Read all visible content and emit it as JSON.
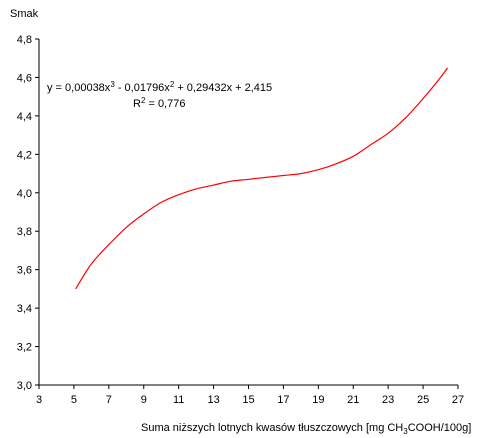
{
  "chart_data": {
    "type": "line",
    "title": "",
    "ylabel": "Smak",
    "xlabel_parts": {
      "before": "Suma niższych lotnych  kwasów tłuszczowych [mg CH",
      "subscript": "3",
      "after": "COOH/100g]"
    },
    "xlim": [
      3,
      27
    ],
    "ylim": [
      3.0,
      4.8
    ],
    "x_ticks": [
      3,
      5,
      7,
      9,
      11,
      13,
      15,
      17,
      19,
      21,
      23,
      25,
      27
    ],
    "y_ticks": [
      "3,0",
      "3,2",
      "3,4",
      "3,6",
      "3,8",
      "4,0",
      "4,2",
      "4,4",
      "4,6",
      "4,8"
    ],
    "y_tick_values": [
      3.0,
      3.2,
      3.4,
      3.6,
      3.8,
      4.0,
      4.2,
      4.4,
      4.6,
      4.8
    ],
    "grid": false,
    "legend": "none",
    "series": [
      {
        "color": "#ff0000",
        "x": [
          5.1,
          6.0,
          7.0,
          8.0,
          9.0,
          10.0,
          11.0,
          12.0,
          13.0,
          14.0,
          15.0,
          16.0,
          17.0,
          18.0,
          19.0,
          20.0,
          21.0,
          22.0,
          23.0,
          24.0,
          25.0,
          26.0,
          26.4
        ],
        "y": [
          3.5,
          3.63,
          3.73,
          3.82,
          3.89,
          3.95,
          3.99,
          4.02,
          4.04,
          4.06,
          4.07,
          4.08,
          4.09,
          4.1,
          4.12,
          4.15,
          4.19,
          4.25,
          4.31,
          4.39,
          4.49,
          4.6,
          4.65
        ]
      }
    ],
    "annotation": {
      "equation": {
        "p1": "y = 0,00038x",
        "sup1": "3",
        "p2": " - 0,01796x",
        "sup2": "2",
        "p3": " + 0,29432x + 2,415"
      },
      "r2": {
        "p1": "R",
        "sup": "2",
        "p2": " = 0,776"
      }
    }
  }
}
